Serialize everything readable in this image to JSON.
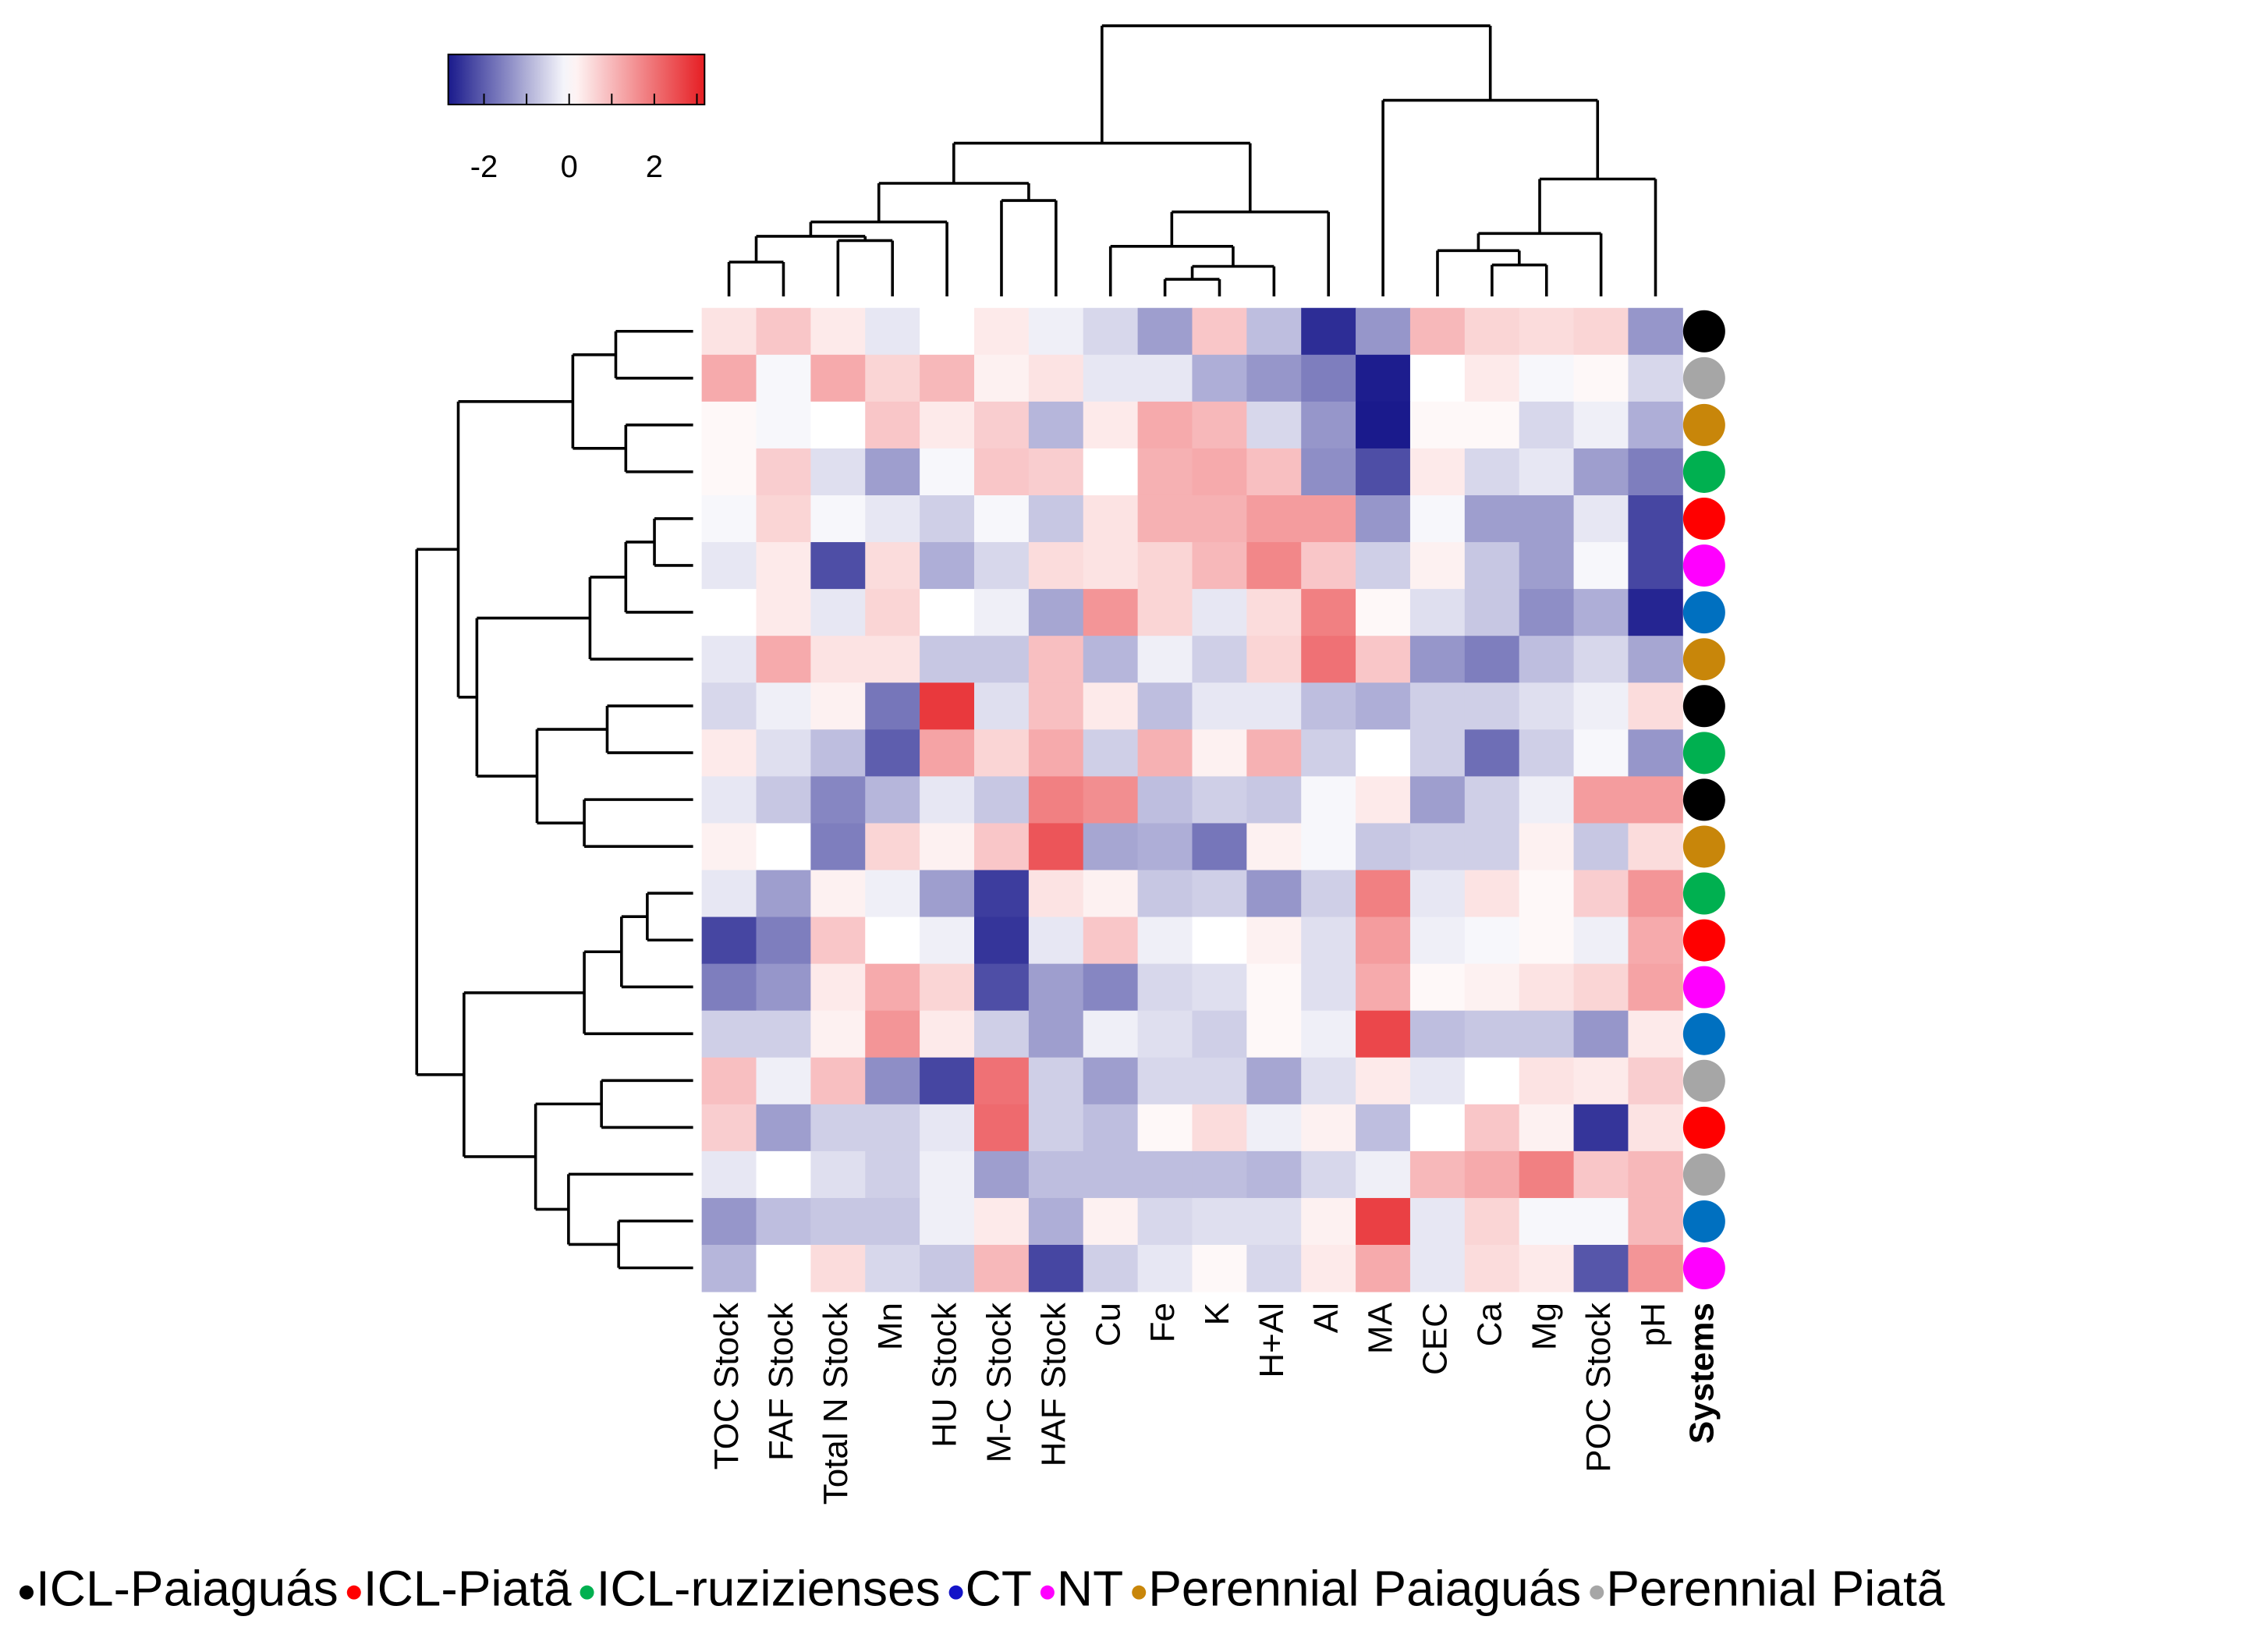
{
  "chart_data": {
    "type": "heatmap",
    "columns": [
      "TOC Stock",
      "FAF Stock",
      "Total N Stock",
      "Mn",
      "HU Stock",
      "M-C Stock",
      "HAF Stock",
      "Cu",
      "Fe",
      "K",
      "H+Al",
      "Al",
      "MA",
      "CEC",
      "Ca",
      "Mg",
      "POC Stock",
      "pH"
    ],
    "systems_label": "Systems",
    "values": [
      [
        0.4,
        0.8,
        0.3,
        -0.3,
        0,
        0.3,
        -0.2,
        -0.5,
        -1.2,
        0.8,
        -0.8,
        -2.6,
        -1.3,
        1.0,
        0.6,
        0.5,
        0.6,
        -1.3
      ],
      [
        1.2,
        -0.1,
        1.2,
        0.6,
        1.0,
        0.2,
        0.4,
        -0.3,
        -0.3,
        -1.0,
        -1.3,
        -1.6,
        -2.8,
        0,
        0.3,
        -0.1,
        0.1,
        -0.5
      ],
      [
        0.1,
        -0.1,
        0,
        0.8,
        0.3,
        0.7,
        -0.9,
        0.3,
        1.2,
        1.0,
        -0.5,
        -1.3,
        -3.0,
        0.1,
        0.1,
        -0.5,
        -0.2,
        -1.0
      ],
      [
        0.1,
        0.7,
        -0.4,
        -1.2,
        -0.1,
        0.8,
        0.7,
        0,
        1.1,
        1.2,
        0.9,
        -1.4,
        -2.2,
        0.3,
        -0.5,
        -0.3,
        -1.2,
        -1.6
      ],
      [
        -0.1,
        0.6,
        -0.1,
        -0.3,
        -0.6,
        -0.1,
        -0.7,
        0.4,
        1.1,
        1.1,
        1.4,
        1.4,
        -1.3,
        -0.1,
        -1.2,
        -1.2,
        -0.3,
        -2.3
      ],
      [
        -0.3,
        0.3,
        -2.2,
        0.5,
        -1.0,
        -0.5,
        0.5,
        0.4,
        0.6,
        1.0,
        1.7,
        0.8,
        -0.6,
        0.2,
        -0.7,
        -1.2,
        -0.1,
        -2.3
      ],
      [
        0,
        0.3,
        -0.3,
        0.6,
        0,
        -0.2,
        -1.1,
        1.5,
        0.6,
        -0.3,
        0.5,
        1.8,
        0.1,
        -0.4,
        -0.7,
        -1.4,
        -1.0,
        -2.7
      ],
      [
        -0.3,
        1.2,
        0.4,
        0.4,
        -0.7,
        -0.7,
        0.9,
        -0.9,
        -0.2,
        -0.6,
        0.6,
        2.0,
        0.8,
        -1.3,
        -1.6,
        -0.8,
        -0.5,
        -1.1
      ],
      [
        -0.5,
        -0.2,
        0.2,
        -1.7,
        2.8,
        -0.4,
        0.9,
        0.3,
        -0.8,
        -0.3,
        -0.3,
        -0.8,
        -1.0,
        -0.6,
        -0.6,
        -0.4,
        -0.2,
        0.5
      ],
      [
        0.3,
        -0.4,
        -0.8,
        -2.0,
        1.3,
        0.6,
        1.2,
        -0.6,
        1.1,
        0.2,
        1.1,
        -0.6,
        0,
        -0.6,
        -1.8,
        -0.6,
        -0.1,
        -1.3
      ],
      [
        -0.3,
        -0.7,
        -1.5,
        -0.9,
        -0.3,
        -0.7,
        1.8,
        1.6,
        -0.8,
        -0.6,
        -0.7,
        -0.1,
        0.3,
        -1.2,
        -0.6,
        -0.2,
        1.4,
        1.4
      ],
      [
        0.2,
        0,
        -1.6,
        0.6,
        0.2,
        0.8,
        2.4,
        -1.1,
        -1.0,
        -1.7,
        0.2,
        -0.1,
        -0.7,
        -0.6,
        -0.6,
        0.2,
        -0.7,
        0.5
      ],
      [
        -0.3,
        -1.2,
        0.2,
        -0.2,
        -1.2,
        -2.4,
        0.4,
        0.2,
        -0.7,
        -0.6,
        -1.3,
        -0.6,
        1.8,
        -0.3,
        0.4,
        0.1,
        0.7,
        1.5
      ],
      [
        -2.3,
        -1.6,
        0.8,
        0,
        -0.2,
        -2.5,
        -0.3,
        0.8,
        -0.2,
        0,
        0.2,
        -0.4,
        1.4,
        -0.2,
        -0.1,
        0.1,
        -0.2,
        1.2
      ],
      [
        -1.6,
        -1.3,
        0.3,
        1.2,
        0.6,
        -2.2,
        -1.2,
        -1.5,
        -0.5,
        -0.4,
        0.1,
        -0.4,
        1.2,
        0.1,
        0.2,
        0.4,
        0.6,
        1.3
      ],
      [
        -0.6,
        -0.6,
        0.2,
        1.5,
        0.3,
        -0.6,
        -1.2,
        -0.2,
        -0.4,
        -0.6,
        0.1,
        -0.2,
        2.6,
        -0.8,
        -0.7,
        -0.7,
        -1.3,
        0.3
      ],
      [
        0.9,
        -0.2,
        0.9,
        -1.4,
        -2.3,
        2.0,
        -0.6,
        -1.2,
        -0.5,
        -0.5,
        -1.1,
        -0.4,
        0.3,
        -0.3,
        0,
        0.4,
        0.3,
        0.7
      ],
      [
        0.7,
        -1.2,
        -0.6,
        -0.6,
        -0.3,
        2.1,
        -0.6,
        -0.8,
        0.1,
        0.5,
        -0.2,
        0.2,
        -0.8,
        0,
        0.8,
        0.2,
        -2.5,
        0.4
      ],
      [
        -0.3,
        0,
        -0.4,
        -0.6,
        -0.2,
        -1.2,
        -0.8,
        -0.8,
        -0.8,
        -0.8,
        -0.9,
        -0.5,
        -0.2,
        1.0,
        1.2,
        1.8,
        0.8,
        1.0
      ],
      [
        -1.3,
        -0.8,
        -0.7,
        -0.7,
        -0.2,
        0.3,
        -1.0,
        0.2,
        -0.5,
        -0.4,
        -0.4,
        0.2,
        2.7,
        -0.3,
        0.6,
        -0.1,
        -0.1,
        1.0
      ],
      [
        -0.9,
        0,
        0.5,
        -0.5,
        -0.7,
        1.0,
        -2.3,
        -0.6,
        -0.3,
        0.1,
        -0.5,
        0.3,
        1.2,
        -0.3,
        0.5,
        0.3,
        -2.1,
        1.5
      ]
    ],
    "row_colors": [
      "#000000",
      "#a6a6a6",
      "#c8860a",
      "#00b050",
      "#ff0000",
      "#ff00ff",
      "#0070c0",
      "#c8860a",
      "#000000",
      "#00b050",
      "#000000",
      "#c8860a",
      "#00b050",
      "#ff0000",
      "#ff00ff",
      "#0070c0",
      "#a6a6a6",
      "#ff0000",
      "#a6a6a6",
      "#0070c0",
      "#ff00ff"
    ],
    "colorbar": {
      "lim": [
        -2.84,
        3.18
      ],
      "ticks": [
        -2,
        0,
        2
      ],
      "minor_ticks": [
        -1,
        1,
        3
      ],
      "low_color": "#1a1a8c",
      "high_color": "#e61e23"
    },
    "legend": [
      {
        "name": "ICL-Paiaguás",
        "color": "#000000"
      },
      {
        "name": "ICL-Piatã",
        "color": "#ff0000"
      },
      {
        "name": "ICL-ruzizienses",
        "color": "#00b050"
      },
      {
        "name": "CT",
        "color": "#1414c8"
      },
      {
        "name": "NT",
        "color": "#ff00ff"
      },
      {
        "name": "Perennial Paiaguás",
        "color": "#c8860a"
      },
      {
        "name": "Perennial Piatã",
        "color": "#a6a6a6"
      }
    ]
  }
}
